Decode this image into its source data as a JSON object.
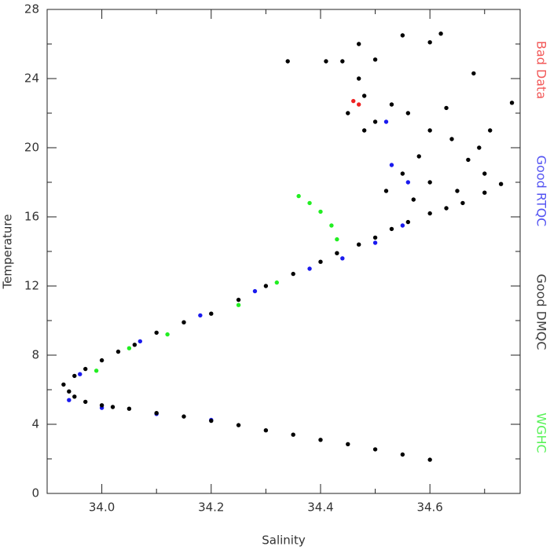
{
  "chart_data": {
    "type": "scatter",
    "x_label": "Salinity",
    "y_label": "Temperature",
    "xlim": [
      33.9,
      34.765
    ],
    "ylim": [
      0,
      28
    ],
    "xticks": [
      {
        "value": 34,
        "label": "34.0"
      },
      {
        "value": 34.2,
        "label": "34.2"
      },
      {
        "value": 34.4,
        "label": "34.4"
      },
      {
        "value": 34.6,
        "label": "34.6"
      }
    ],
    "xticks_minor": [
      34.1,
      34.3,
      34.5,
      34.7
    ],
    "yticks": [
      0,
      4,
      8,
      12,
      16,
      20,
      24,
      28
    ],
    "yticks_minor": [
      2,
      6,
      10,
      14,
      18,
      22,
      26
    ],
    "legend": "right",
    "series": [
      {
        "name": "Bad Data",
        "color": "#ee2222",
        "x": [
          34.46,
          34.47
        ],
        "values": [
          22.7,
          22.5
        ]
      },
      {
        "name": "Good RTQC",
        "color": "#1a1aee",
        "x": [
          33.94,
          34.0,
          33.96,
          34.07,
          34.18,
          34.28,
          34.38,
          34.44,
          34.5,
          34.55,
          34.53,
          34.52,
          34.56,
          34.2,
          34.1
        ],
        "values": [
          5.4,
          4.95,
          6.9,
          8.8,
          10.3,
          11.7,
          13.0,
          13.6,
          14.5,
          15.5,
          19.0,
          21.5,
          18.0,
          4.25,
          4.6
        ]
      },
      {
        "name": "Good DMQC",
        "color": "#000000",
        "x": [
          34.05,
          34.1,
          34.15,
          34.2,
          34.25,
          34.3,
          34.35,
          34.4,
          34.45,
          34.5,
          34.55,
          34.6,
          34.02,
          34.0,
          33.97,
          33.95,
          33.94,
          33.93,
          33.95,
          33.97,
          34.0,
          34.03,
          34.06,
          34.1,
          34.15,
          34.2,
          34.25,
          34.3,
          34.35,
          34.4,
          34.43,
          34.47,
          34.5,
          34.53,
          34.56,
          34.6,
          34.63,
          34.66,
          34.7,
          34.73,
          34.34,
          34.41,
          34.44,
          34.47,
          34.5,
          34.55,
          34.6,
          34.62,
          34.68,
          34.75,
          34.48,
          34.45,
          34.5,
          34.53,
          34.56,
          34.6,
          34.64,
          34.67,
          34.7,
          34.58,
          34.55,
          34.52,
          34.6,
          34.65,
          34.63,
          34.48,
          34.57,
          34.69,
          34.71,
          34.47
        ],
        "values": [
          4.9,
          4.65,
          4.45,
          4.2,
          3.95,
          3.65,
          3.4,
          3.1,
          2.85,
          2.55,
          2.25,
          1.95,
          5.0,
          5.1,
          5.3,
          5.6,
          5.9,
          6.3,
          6.8,
          7.2,
          7.7,
          8.2,
          8.6,
          9.3,
          9.9,
          10.4,
          11.2,
          12.0,
          12.7,
          13.4,
          13.9,
          14.4,
          14.8,
          15.3,
          15.7,
          16.2,
          16.5,
          16.8,
          17.4,
          17.9,
          25.0,
          25.0,
          25.0,
          26.0,
          25.1,
          26.5,
          26.1,
          26.6,
          24.3,
          22.6,
          23.0,
          22.0,
          21.5,
          22.5,
          22.0,
          21.0,
          20.5,
          19.3,
          18.5,
          19.5,
          18.5,
          17.5,
          18.0,
          17.5,
          22.3,
          21.0,
          17.0,
          20.0,
          21.0,
          24.0
        ]
      },
      {
        "name": "WGHC",
        "color": "#22ee22",
        "x": [
          34.36,
          34.38,
          34.4,
          34.42,
          34.43,
          33.99,
          34.05,
          34.12,
          34.25,
          34.32
        ],
        "values": [
          17.2,
          16.8,
          16.3,
          15.5,
          14.7,
          7.1,
          8.4,
          9.2,
          10.9,
          12.2
        ]
      }
    ]
  }
}
